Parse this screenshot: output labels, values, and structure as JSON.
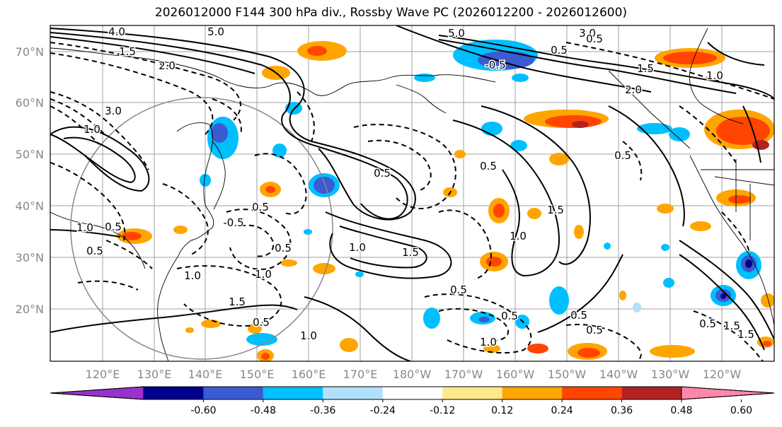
{
  "title": "2026012000 F144 300 hPa div., Rossby Wave PC (2026012200 - 2026012600)",
  "lat_labels": [
    "70°N",
    "60°N",
    "50°N",
    "40°N",
    "30°N",
    "20°N"
  ],
  "lon_labels": [
    "120°E",
    "130°E",
    "140°E",
    "150°E",
    "160°E",
    "170°E",
    "180°W",
    "170°W",
    "160°W",
    "150°W",
    "140°W",
    "130°W",
    "120°W"
  ],
  "colorbar": {
    "colors": [
      "#9932cc",
      "#00008b",
      "#3a5bd1",
      "#00bfff",
      "#b0e0fa",
      "#ffffff",
      "#fde98a",
      "#ffa500",
      "#ff4500",
      "#b22222",
      "#ff88aa"
    ],
    "tick_labels": [
      "-0.60",
      "-0.48",
      "-0.36",
      "-0.24",
      "-0.12",
      "0.12",
      "0.24",
      "0.36",
      "0.48",
      "0.60"
    ]
  },
  "contour_labels": [
    "4.0",
    "5.0",
    "1.5",
    "2.0",
    "3.0",
    "1.0",
    "0.5",
    "-0.5",
    "2.0",
    "5.0",
    "3.0",
    "0.5",
    "1.5",
    "1.0",
    "0.5",
    "1.5",
    "-0.5",
    "0.5",
    "1.0",
    "0.5",
    "1.5",
    "0.5",
    "1.0",
    "1.0",
    "0.5",
    "1.0",
    "0.5",
    "0.5",
    "0.5",
    "1.0",
    "0.5",
    "1.5",
    "0.5",
    "1.5",
    "1.0",
    "0.5",
    "1.5",
    "0.5",
    "1.0",
    "0.5"
  ]
}
